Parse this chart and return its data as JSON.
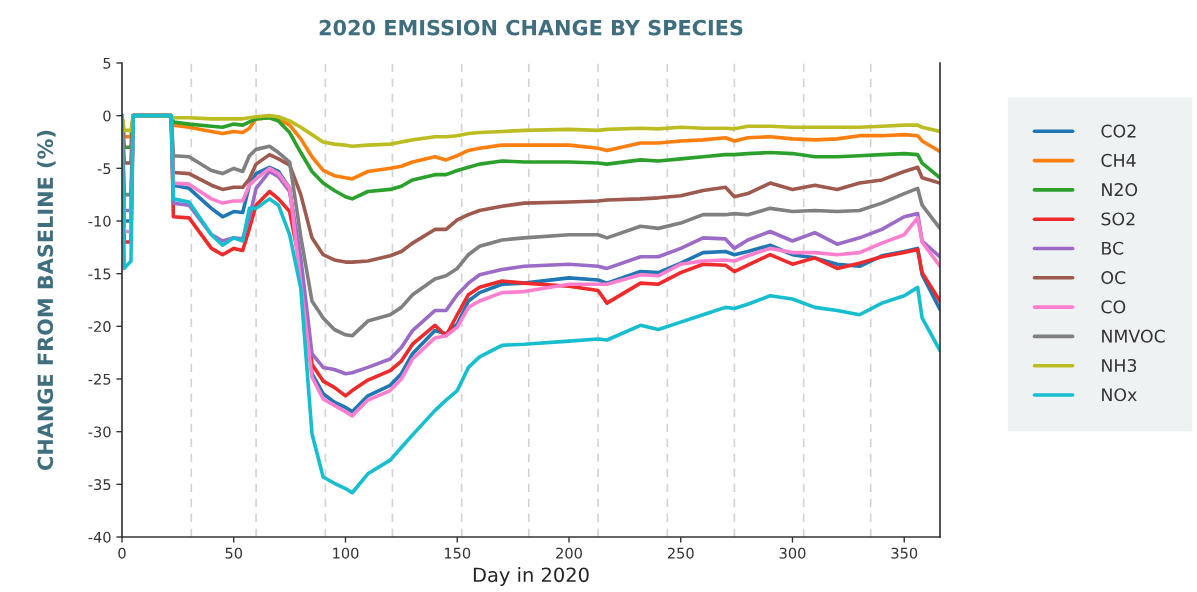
{
  "chart_data": {
    "type": "line",
    "title": "2020 EMISSION CHANGE BY SPECIES",
    "xlabel": "Day in 2020",
    "ylabel": "CHANGE FROM BASELINE (%)",
    "x": [
      0,
      1,
      4,
      5,
      22,
      23,
      30,
      40,
      45,
      50,
      54,
      57,
      60,
      66,
      70,
      75,
      80,
      85,
      90,
      95,
      100,
      103,
      110,
      120,
      125,
      130,
      140,
      145,
      150,
      155,
      160,
      170,
      180,
      200,
      213,
      217,
      232,
      240,
      250,
      260,
      270,
      274,
      280,
      290,
      300,
      310,
      320,
      330,
      340,
      350,
      356,
      358,
      366
    ],
    "series": [
      {
        "name": "CO2",
        "color": "#1f77b4",
        "values": [
          0,
          -10,
          -10,
          0,
          0,
          -6.6,
          -6.9,
          -8.8,
          -9.6,
          -9.1,
          -9.2,
          -6.6,
          -5.5,
          -4.9,
          -5.3,
          -6.9,
          -15.1,
          -24.5,
          -26.4,
          -27.2,
          -27.7,
          -28.1,
          -26.6,
          -25.6,
          -24.5,
          -22.6,
          -20.4,
          -20.7,
          -19.8,
          -17.6,
          -16.8,
          -16.0,
          -15.9,
          -15.4,
          -15.6,
          -15.9,
          -14.8,
          -14.9,
          -14.0,
          -13.0,
          -12.9,
          -13.2,
          -12.9,
          -12.3,
          -13.2,
          -13.5,
          -14.1,
          -14.3,
          -13.3,
          -12.9,
          -12.6,
          -15.1,
          -18.4
        ]
      },
      {
        "name": "CH4",
        "color": "#ff7f0e",
        "values": [
          0,
          -2,
          -2,
          0,
          0,
          -0.9,
          -1.1,
          -1.5,
          -1.7,
          -1.5,
          -1.6,
          -1.2,
          -0.3,
          -0.2,
          -0.3,
          -0.9,
          -2.2,
          -3.9,
          -5.2,
          -5.7,
          -5.9,
          -6.0,
          -5.3,
          -5.0,
          -4.8,
          -4.4,
          -3.9,
          -4.2,
          -3.8,
          -3.3,
          -3.1,
          -2.8,
          -2.8,
          -2.8,
          -3.1,
          -3.3,
          -2.6,
          -2.6,
          -2.4,
          -2.3,
          -2.1,
          -2.4,
          -2.1,
          -2.0,
          -2.2,
          -2.3,
          -2.2,
          -1.9,
          -1.9,
          -1.8,
          -1.9,
          -2.4,
          -3.4
        ]
      },
      {
        "name": "N2O",
        "color": "#2ca02c",
        "values": [
          0,
          -3,
          -3,
          0,
          0,
          -0.6,
          -0.8,
          -1.0,
          -1.1,
          -0.8,
          -0.9,
          -0.6,
          -0.3,
          -0.2,
          -0.5,
          -1.6,
          -3.5,
          -5.3,
          -6.4,
          -7.1,
          -7.7,
          -7.9,
          -7.2,
          -7.0,
          -6.7,
          -6.1,
          -5.6,
          -5.6,
          -5.2,
          -4.9,
          -4.6,
          -4.3,
          -4.4,
          -4.4,
          -4.5,
          -4.6,
          -4.2,
          -4.3,
          -4.1,
          -3.9,
          -3.7,
          -3.7,
          -3.6,
          -3.5,
          -3.6,
          -3.9,
          -3.9,
          -3.8,
          -3.7,
          -3.6,
          -3.7,
          -4.5,
          -5.9
        ]
      },
      {
        "name": "SO2",
        "color": "#ee2a2a",
        "values": [
          0,
          -12,
          -12,
          0,
          0,
          -9.6,
          -9.7,
          -12.6,
          -13.2,
          -12.6,
          -12.8,
          -10.7,
          -8.5,
          -7.2,
          -7.9,
          -9.1,
          -14.5,
          -23.6,
          -25.2,
          -25.8,
          -26.6,
          -26.1,
          -25.1,
          -24.2,
          -23.3,
          -21.7,
          -19.9,
          -20.9,
          -18.9,
          -17.0,
          -16.3,
          -15.7,
          -15.9,
          -16.2,
          -16.6,
          -17.8,
          -15.9,
          -16.0,
          -14.9,
          -14.1,
          -14.2,
          -14.8,
          -14.2,
          -13.2,
          -14.1,
          -13.5,
          -14.5,
          -14.0,
          -13.4,
          -13.0,
          -12.7,
          -14.9,
          -17.6
        ]
      },
      {
        "name": "BC",
        "color": "#9c6bc8",
        "values": [
          0,
          -9,
          -9,
          0,
          0,
          -8.3,
          -8.5,
          -11.3,
          -11.9,
          -11.6,
          -11.7,
          -9.7,
          -6.9,
          -5.3,
          -5.8,
          -7.2,
          -13.5,
          -22.6,
          -23.9,
          -24.1,
          -24.5,
          -24.4,
          -23.9,
          -23.1,
          -22.0,
          -20.4,
          -18.5,
          -18.5,
          -17.0,
          -15.9,
          -15.1,
          -14.6,
          -14.3,
          -14.1,
          -14.3,
          -14.5,
          -13.4,
          -13.4,
          -12.6,
          -11.6,
          -11.7,
          -12.6,
          -11.8,
          -11.0,
          -11.9,
          -11.1,
          -12.2,
          -11.6,
          -10.8,
          -9.6,
          -9.3,
          -11.9,
          -13.4
        ]
      },
      {
        "name": "OC",
        "color": "#9e5a4e",
        "values": [
          0,
          -4.5,
          -4.5,
          0,
          0,
          -5.4,
          -5.5,
          -6.6,
          -7.0,
          -6.8,
          -6.8,
          -6.0,
          -4.6,
          -3.7,
          -4.1,
          -4.7,
          -7.5,
          -11.6,
          -13.2,
          -13.7,
          -13.9,
          -13.9,
          -13.8,
          -13.3,
          -12.9,
          -12.1,
          -10.8,
          -10.8,
          -9.9,
          -9.4,
          -9.0,
          -8.6,
          -8.3,
          -8.2,
          -8.1,
          -8.0,
          -7.9,
          -7.8,
          -7.6,
          -7.1,
          -6.8,
          -7.7,
          -7.4,
          -6.4,
          -7.0,
          -6.6,
          -7.0,
          -6.4,
          -6.1,
          -5.3,
          -4.9,
          -5.9,
          -6.4
        ]
      },
      {
        "name": "CO",
        "color": "#ff7fcf",
        "values": [
          0,
          -11,
          -11,
          0,
          0,
          -6.4,
          -6.5,
          -7.9,
          -8.3,
          -8.1,
          -8.1,
          -6.6,
          -6.0,
          -5.0,
          -5.5,
          -6.9,
          -16.0,
          -24.8,
          -26.9,
          -27.5,
          -28.1,
          -28.5,
          -27.0,
          -26.1,
          -25.0,
          -23.1,
          -21.1,
          -20.9,
          -20.1,
          -18.2,
          -17.6,
          -16.8,
          -16.7,
          -16.0,
          -16.0,
          -16.0,
          -15.1,
          -15.2,
          -14.1,
          -13.8,
          -13.7,
          -13.8,
          -13.3,
          -12.6,
          -13.0,
          -13.0,
          -13.2,
          -13.0,
          -12.1,
          -11.3,
          -9.7,
          -12.0,
          -14.3
        ]
      },
      {
        "name": "NMVOC",
        "color": "#808080",
        "values": [
          0,
          -7.5,
          -7.5,
          0,
          0,
          -3.8,
          -3.9,
          -5.2,
          -5.5,
          -5.0,
          -5.3,
          -3.8,
          -3.2,
          -2.9,
          -3.5,
          -4.4,
          -11.5,
          -17.6,
          -19.2,
          -20.3,
          -20.8,
          -20.9,
          -19.5,
          -18.9,
          -18.2,
          -17.0,
          -15.5,
          -15.2,
          -14.5,
          -13.2,
          -12.4,
          -11.8,
          -11.6,
          -11.3,
          -11.3,
          -11.6,
          -10.5,
          -10.7,
          -10.2,
          -9.4,
          -9.4,
          -9.3,
          -9.4,
          -8.8,
          -9.1,
          -9.0,
          -9.1,
          -9.0,
          -8.3,
          -7.4,
          -6.9,
          -8.5,
          -10.7
        ]
      },
      {
        "name": "NH3",
        "color": "#bcbd22",
        "values": [
          0,
          -1.4,
          -1.4,
          0,
          0,
          -0.2,
          -0.2,
          -0.3,
          -0.3,
          -0.3,
          -0.3,
          -0.2,
          -0.1,
          0,
          -0.1,
          -0.5,
          -1.1,
          -1.8,
          -2.5,
          -2.7,
          -2.8,
          -2.9,
          -2.8,
          -2.7,
          -2.5,
          -2.3,
          -2.0,
          -2.0,
          -1.9,
          -1.7,
          -1.6,
          -1.5,
          -1.4,
          -1.3,
          -1.4,
          -1.3,
          -1.2,
          -1.25,
          -1.1,
          -1.2,
          -1.2,
          -1.25,
          -1.0,
          -1.0,
          -1.1,
          -1.1,
          -1.1,
          -1.1,
          -1.0,
          -0.9,
          -0.9,
          -1.1,
          -1.5
        ]
      },
      {
        "name": "NOx",
        "color": "#17becf",
        "values": [
          0,
          -14.5,
          -13.8,
          0,
          0,
          -7.9,
          -8.2,
          -11.3,
          -12.3,
          -11.6,
          -11.9,
          -8.8,
          -8.8,
          -7.9,
          -8.5,
          -11.3,
          -16.4,
          -30.2,
          -34.3,
          -34.9,
          -35.4,
          -35.8,
          -34.0,
          -32.7,
          -31.5,
          -30.3,
          -28.0,
          -27.0,
          -26.1,
          -23.9,
          -22.9,
          -21.8,
          -21.7,
          -21.4,
          -21.2,
          -21.3,
          -19.9,
          -20.3,
          -19.6,
          -18.9,
          -18.2,
          -18.3,
          -17.9,
          -17.1,
          -17.4,
          -18.2,
          -18.5,
          -18.9,
          -17.8,
          -17.1,
          -16.3,
          -19.2,
          -22.3
        ]
      }
    ],
    "xlim": [
      0,
      366
    ],
    "ylim": [
      -40,
      5
    ],
    "xticks": [
      0,
      50,
      100,
      150,
      200,
      250,
      300,
      350
    ],
    "yticks": [
      -40,
      -35,
      -30,
      -25,
      -20,
      -15,
      -10,
      -5,
      0,
      5
    ],
    "ref_lines": [
      {
        "axis": "x",
        "value": 31,
        "color": "#d3d3d3",
        "line_style": "dashed"
      },
      {
        "axis": "x",
        "value": 60,
        "color": "#d3d3d3",
        "line_style": "dashed"
      },
      {
        "axis": "x",
        "value": 91,
        "color": "#d3d3d3",
        "line_style": "dashed"
      },
      {
        "axis": "x",
        "value": 121,
        "color": "#d3d3d3",
        "line_style": "dashed"
      },
      {
        "axis": "x",
        "value": 152,
        "color": "#d3d3d3",
        "line_style": "dashed"
      },
      {
        "axis": "x",
        "value": 182,
        "color": "#d3d3d3",
        "line_style": "dashed"
      },
      {
        "axis": "x",
        "value": 213,
        "color": "#d3d3d3",
        "line_style": "dashed"
      },
      {
        "axis": "x",
        "value": 244,
        "color": "#d3d3d3",
        "line_style": "dashed"
      },
      {
        "axis": "x",
        "value": 274,
        "color": "#d3d3d3",
        "line_style": "dashed"
      },
      {
        "axis": "x",
        "value": 305,
        "color": "#d3d3d3",
        "line_style": "dashed"
      },
      {
        "axis": "x",
        "value": 335,
        "color": "#d3d3d3",
        "line_style": "dashed"
      }
    ],
    "grid": false,
    "legend": "right",
    "marker": "none",
    "line_style": "solid"
  }
}
